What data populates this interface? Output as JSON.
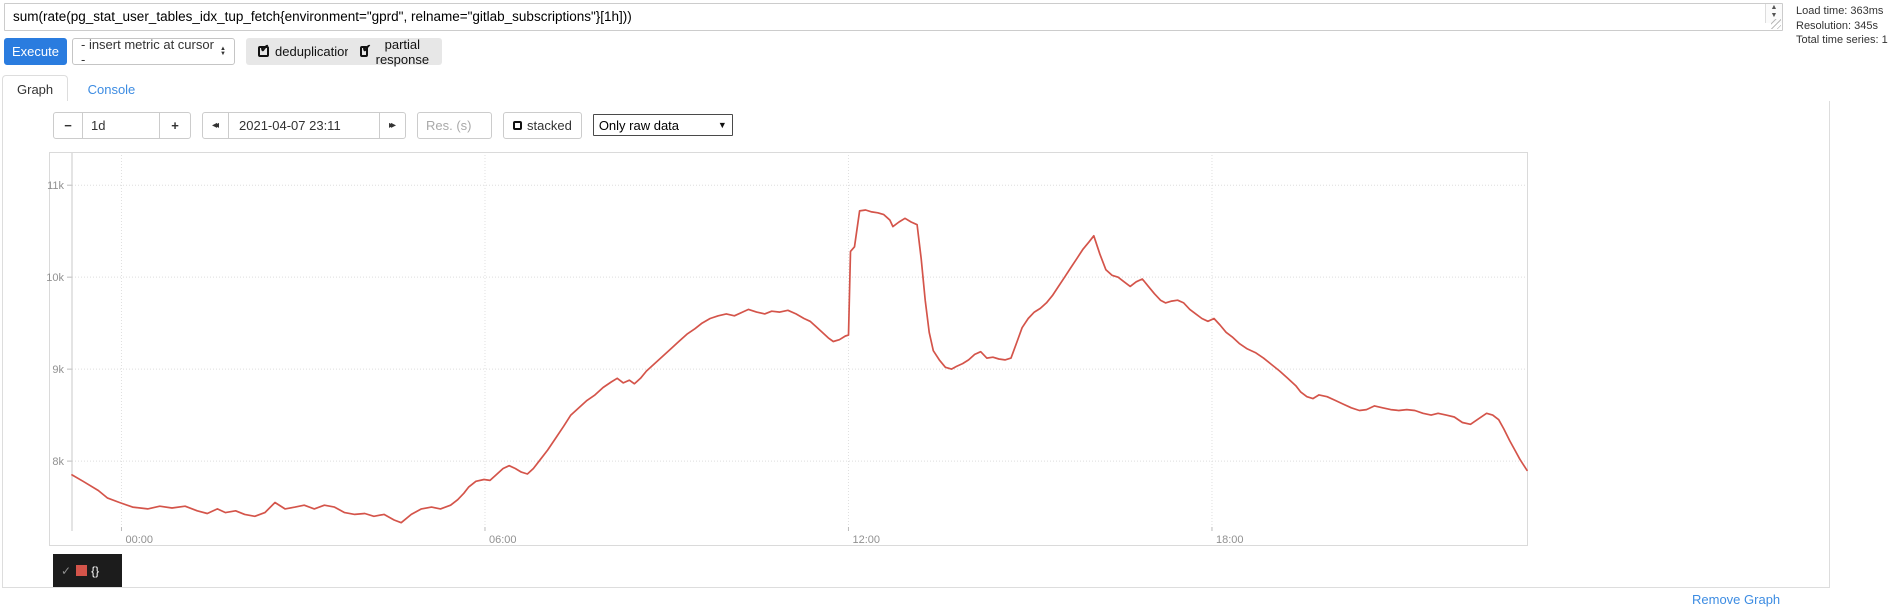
{
  "query": {
    "value": "sum(rate(pg_stat_user_tables_idx_tup_fetch{environment=\"gprd\", relname=\"gitlab_subscriptions\"}[1h]))"
  },
  "stats": {
    "load_time": "Load time: 363ms",
    "resolution": "Resolution: 345s",
    "total_series": "Total time series: 1"
  },
  "toolbar": {
    "execute_label": "Execute",
    "insert_metric_label": "- insert metric at cursor -",
    "dedup_label": "deduplication",
    "partial_label": "partial response"
  },
  "tabs": {
    "items": [
      {
        "label": "Graph"
      },
      {
        "label": "Console"
      }
    ]
  },
  "graph_controls": {
    "range_decrease": "−",
    "range_value": "1d",
    "range_increase": "+",
    "back": "◂◂",
    "datetime_value": "2021-04-07 23:11",
    "forward": "▸▸",
    "res_placeholder": "Res. (s)",
    "stacked_label": "stacked",
    "resolution_select_value": "Only raw data"
  },
  "legend": {
    "check": "✓",
    "series_label": "{}"
  },
  "footer": {
    "remove_graph_label": "Remove Graph"
  },
  "chart_data": {
    "type": "line",
    "title": "",
    "xlabel": "",
    "ylabel": "",
    "x_unit": "minutes since 2021-04-06 23:11",
    "x_range": [
      0,
      1441
    ],
    "ylim": [
      7.24,
      11.35
    ],
    "grid": true,
    "legend_position": "bottom-left",
    "y_ticks": [
      {
        "v": 8,
        "label": "8k"
      },
      {
        "v": 9,
        "label": "9k"
      },
      {
        "v": 10,
        "label": "10k"
      },
      {
        "v": 11,
        "label": "11k"
      }
    ],
    "x_ticks": [
      {
        "m": 49,
        "label": "00:00"
      },
      {
        "m": 409,
        "label": "06:00"
      },
      {
        "m": 769,
        "label": "12:00"
      },
      {
        "m": 1129,
        "label": "18:00"
      }
    ],
    "series": [
      {
        "name": "{}",
        "color": "#d4544a",
        "points": [
          [
            0,
            7.85
          ],
          [
            11,
            7.78
          ],
          [
            26,
            7.68
          ],
          [
            35,
            7.6
          ],
          [
            47,
            7.55
          ],
          [
            60,
            7.5
          ],
          [
            75,
            7.48
          ],
          [
            87,
            7.51
          ],
          [
            99,
            7.49
          ],
          [
            112,
            7.51
          ],
          [
            124,
            7.46
          ],
          [
            134,
            7.43
          ],
          [
            144,
            7.48
          ],
          [
            152,
            7.44
          ],
          [
            162,
            7.46
          ],
          [
            171,
            7.42
          ],
          [
            181,
            7.4
          ],
          [
            191,
            7.44
          ],
          [
            201,
            7.55
          ],
          [
            211,
            7.48
          ],
          [
            221,
            7.5
          ],
          [
            230,
            7.52
          ],
          [
            240,
            7.48
          ],
          [
            250,
            7.52
          ],
          [
            260,
            7.5
          ],
          [
            270,
            7.44
          ],
          [
            280,
            7.42
          ],
          [
            290,
            7.43
          ],
          [
            299,
            7.4
          ],
          [
            309,
            7.42
          ],
          [
            319,
            7.36
          ],
          [
            326,
            7.33
          ],
          [
            336,
            7.42
          ],
          [
            346,
            7.48
          ],
          [
            356,
            7.5
          ],
          [
            365,
            7.48
          ],
          [
            375,
            7.52
          ],
          [
            382,
            7.58
          ],
          [
            388,
            7.65
          ],
          [
            393,
            7.72
          ],
          [
            400,
            7.78
          ],
          [
            408,
            7.8
          ],
          [
            414,
            7.79
          ],
          [
            420,
            7.85
          ],
          [
            427,
            7.92
          ],
          [
            433,
            7.95
          ],
          [
            439,
            7.92
          ],
          [
            445,
            7.88
          ],
          [
            451,
            7.86
          ],
          [
            457,
            7.92
          ],
          [
            464,
            8.02
          ],
          [
            471,
            8.12
          ],
          [
            479,
            8.25
          ],
          [
            487,
            8.38
          ],
          [
            494,
            8.5
          ],
          [
            502,
            8.58
          ],
          [
            510,
            8.66
          ],
          [
            518,
            8.72
          ],
          [
            526,
            8.8
          ],
          [
            534,
            8.86
          ],
          [
            540,
            8.9
          ],
          [
            546,
            8.85
          ],
          [
            552,
            8.88
          ],
          [
            557,
            8.84
          ],
          [
            563,
            8.9
          ],
          [
            569,
            8.98
          ],
          [
            577,
            9.06
          ],
          [
            585,
            9.14
          ],
          [
            593,
            9.22
          ],
          [
            601,
            9.3
          ],
          [
            609,
            9.38
          ],
          [
            617,
            9.44
          ],
          [
            624,
            9.5
          ],
          [
            632,
            9.55
          ],
          [
            640,
            9.58
          ],
          [
            648,
            9.6
          ],
          [
            656,
            9.58
          ],
          [
            664,
            9.62
          ],
          [
            670,
            9.65
          ],
          [
            678,
            9.62
          ],
          [
            686,
            9.6
          ],
          [
            693,
            9.63
          ],
          [
            701,
            9.62
          ],
          [
            709,
            9.64
          ],
          [
            717,
            9.6
          ],
          [
            725,
            9.55
          ],
          [
            731,
            9.52
          ],
          [
            737,
            9.46
          ],
          [
            743,
            9.4
          ],
          [
            749,
            9.34
          ],
          [
            754,
            9.3
          ],
          [
            760,
            9.32
          ],
          [
            766,
            9.36
          ],
          [
            769,
            9.37
          ],
          [
            771,
            10.28
          ],
          [
            775,
            10.33
          ],
          [
            780,
            10.72
          ],
          [
            786,
            10.73
          ],
          [
            792,
            10.71
          ],
          [
            798,
            10.7
          ],
          [
            804,
            10.68
          ],
          [
            810,
            10.62
          ],
          [
            813,
            10.55
          ],
          [
            819,
            10.6
          ],
          [
            825,
            10.64
          ],
          [
            831,
            10.6
          ],
          [
            837,
            10.57
          ],
          [
            841,
            10.2
          ],
          [
            845,
            9.75
          ],
          [
            849,
            9.4
          ],
          [
            853,
            9.2
          ],
          [
            859,
            9.1
          ],
          [
            865,
            9.02
          ],
          [
            871,
            9.0
          ],
          [
            876,
            9.03
          ],
          [
            882,
            9.06
          ],
          [
            888,
            9.1
          ],
          [
            894,
            9.16
          ],
          [
            900,
            9.19
          ],
          [
            906,
            9.12
          ],
          [
            912,
            9.13
          ],
          [
            918,
            9.11
          ],
          [
            924,
            9.1
          ],
          [
            930,
            9.12
          ],
          [
            936,
            9.3
          ],
          [
            941,
            9.45
          ],
          [
            947,
            9.55
          ],
          [
            953,
            9.62
          ],
          [
            959,
            9.66
          ],
          [
            965,
            9.72
          ],
          [
            971,
            9.8
          ],
          [
            977,
            9.9
          ],
          [
            983,
            10.0
          ],
          [
            989,
            10.1
          ],
          [
            995,
            10.2
          ],
          [
            1001,
            10.3
          ],
          [
            1007,
            10.38
          ],
          [
            1012,
            10.45
          ],
          [
            1018,
            10.25
          ],
          [
            1024,
            10.08
          ],
          [
            1030,
            10.02
          ],
          [
            1036,
            10.0
          ],
          [
            1042,
            9.95
          ],
          [
            1048,
            9.9
          ],
          [
            1054,
            9.95
          ],
          [
            1060,
            9.98
          ],
          [
            1066,
            9.9
          ],
          [
            1072,
            9.82
          ],
          [
            1078,
            9.75
          ],
          [
            1083,
            9.72
          ],
          [
            1089,
            9.74
          ],
          [
            1095,
            9.75
          ],
          [
            1101,
            9.72
          ],
          [
            1107,
            9.65
          ],
          [
            1113,
            9.6
          ],
          [
            1119,
            9.55
          ],
          [
            1125,
            9.52
          ],
          [
            1131,
            9.55
          ],
          [
            1137,
            9.48
          ],
          [
            1143,
            9.4
          ],
          [
            1149,
            9.35
          ],
          [
            1156,
            9.28
          ],
          [
            1164,
            9.22
          ],
          [
            1172,
            9.18
          ],
          [
            1180,
            9.12
          ],
          [
            1188,
            9.05
          ],
          [
            1196,
            8.98
          ],
          [
            1204,
            8.9
          ],
          [
            1212,
            8.82
          ],
          [
            1217,
            8.75
          ],
          [
            1223,
            8.7
          ],
          [
            1229,
            8.68
          ],
          [
            1235,
            8.72
          ],
          [
            1243,
            8.7
          ],
          [
            1251,
            8.66
          ],
          [
            1259,
            8.62
          ],
          [
            1267,
            8.58
          ],
          [
            1275,
            8.55
          ],
          [
            1282,
            8.56
          ],
          [
            1290,
            8.6
          ],
          [
            1298,
            8.58
          ],
          [
            1306,
            8.56
          ],
          [
            1314,
            8.55
          ],
          [
            1322,
            8.56
          ],
          [
            1330,
            8.55
          ],
          [
            1338,
            8.52
          ],
          [
            1346,
            8.5
          ],
          [
            1353,
            8.52
          ],
          [
            1361,
            8.5
          ],
          [
            1369,
            8.48
          ],
          [
            1377,
            8.42
          ],
          [
            1385,
            8.4
          ],
          [
            1393,
            8.46
          ],
          [
            1401,
            8.52
          ],
          [
            1407,
            8.5
          ],
          [
            1413,
            8.45
          ],
          [
            1418,
            8.35
          ],
          [
            1424,
            8.22
          ],
          [
            1429,
            8.12
          ],
          [
            1434,
            8.02
          ],
          [
            1438,
            7.95
          ],
          [
            1441,
            7.9
          ]
        ]
      }
    ],
    "colors": {
      "line": "#d4544a",
      "grid": "#dddddd",
      "axis": "#c9c9c9",
      "tick_label": "#919191",
      "legend_bg": "#1c1c1c"
    }
  }
}
